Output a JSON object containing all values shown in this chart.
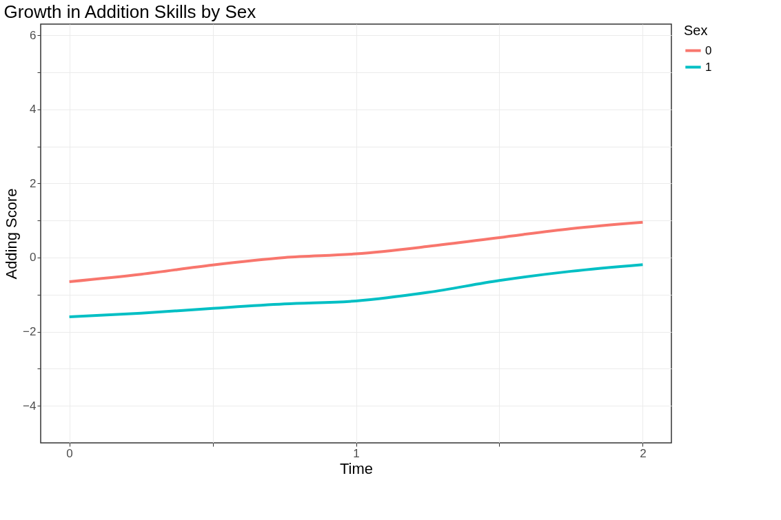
{
  "chart_data": {
    "type": "line",
    "title": "Growth in Addition Skills by Sex",
    "xlabel": "Time",
    "ylabel": "Adding Score",
    "legend_title": "Sex",
    "x": [
      0,
      0.25,
      0.5,
      0.75,
      1,
      1.25,
      1.5,
      1.75,
      2
    ],
    "series": [
      {
        "name": "0",
        "color": "#f8766d",
        "values": [
          -0.65,
          -0.45,
          -0.2,
          0,
          0.1,
          0.3,
          0.54,
          0.78,
          0.95
        ]
      },
      {
        "name": "1",
        "color": "#00bfc4",
        "values": [
          -1.6,
          -1.5,
          -1.37,
          -1.25,
          -1.17,
          -0.94,
          -0.62,
          -0.37,
          -0.19
        ]
      }
    ],
    "xlim": [
      -0.1,
      2.1
    ],
    "ylim": [
      -5,
      6.3
    ],
    "xticks": [
      0,
      {
        "value": 0.5,
        "label": null
      },
      1,
      {
        "value": 1.5,
        "label": null
      },
      2
    ],
    "yticks": [
      -4,
      {
        "value": -3,
        "label": null
      },
      -2,
      {
        "value": -1,
        "label": null
      },
      0,
      {
        "value": 1,
        "label": null
      },
      2,
      {
        "value": 3,
        "label": null
      },
      4,
      {
        "value": 5,
        "label": null
      },
      6
    ],
    "grid": true,
    "legend": "right",
    "marker": "none",
    "line_style": "solid"
  }
}
